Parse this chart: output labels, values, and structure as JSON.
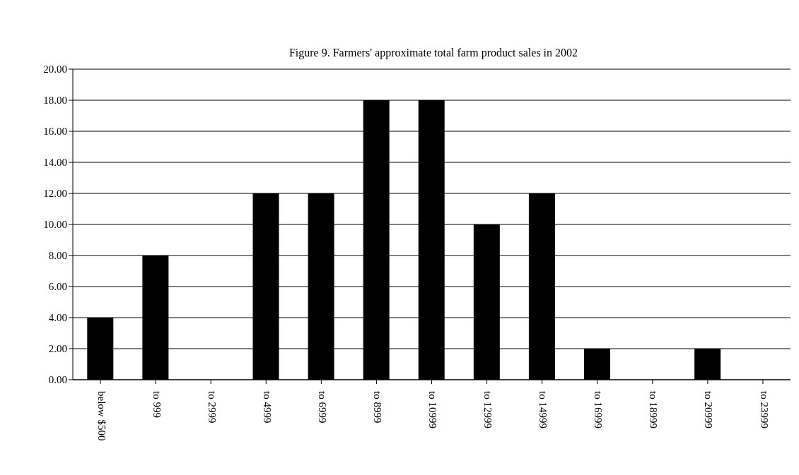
{
  "chart_data": {
    "type": "bar",
    "title": "Figure 9. Farmers' approximate total farm product sales in 2002",
    "categories": [
      "below $500",
      "to 999",
      "to 2999",
      "to 4999",
      "to 6999",
      "to 8999",
      "to 10999",
      "to 12999",
      "to 14999",
      "to 16999",
      "to 18999",
      "to 20999",
      "to 23999"
    ],
    "values": [
      4,
      8,
      0,
      12,
      12,
      18,
      18,
      10,
      12,
      2,
      0,
      2,
      0
    ],
    "color": "#000000",
    "ylim": [
      0,
      20
    ],
    "yticks": [
      {
        "value": 0,
        "label": "0.00"
      },
      {
        "value": 2,
        "label": "2.00"
      },
      {
        "value": 4,
        "label": "4.00"
      },
      {
        "value": 6,
        "label": "6.00"
      },
      {
        "value": 8,
        "label": "8.00"
      },
      {
        "value": 10,
        "label": "10.00"
      },
      {
        "value": 12,
        "label": "12.00"
      },
      {
        "value": 14,
        "label": "14.00"
      },
      {
        "value": 16,
        "label": "16.00"
      },
      {
        "value": 18,
        "label": "18.00"
      },
      {
        "value": 20,
        "label": "20.00"
      }
    ],
    "grid": "y"
  }
}
